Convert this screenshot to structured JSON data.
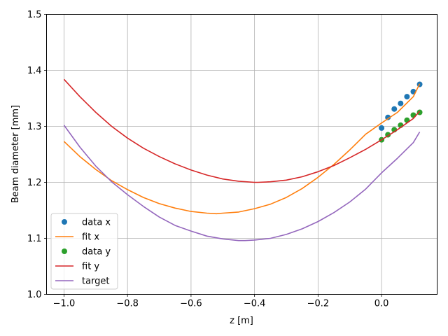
{
  "chart_data": {
    "type": "line",
    "title": "",
    "xlabel": "z [m]",
    "ylabel": "Beam diameter [mm]",
    "xlim": [
      -1.055,
      0.175
    ],
    "ylim": [
      1.0,
      1.5
    ],
    "xticks": [
      -1.0,
      -0.8,
      -0.6,
      -0.4,
      -0.2,
      0.0
    ],
    "xtick_labels": [
      "−1.0",
      "−0.8",
      "−0.6",
      "−0.4",
      "−0.2",
      "0.0"
    ],
    "yticks": [
      1.0,
      1.1,
      1.2,
      1.3,
      1.4,
      1.5
    ],
    "ytick_labels": [
      "1.0",
      "1.1",
      "1.2",
      "1.3",
      "1.4",
      "1.5"
    ],
    "grid": true,
    "legend_position": "lower-left",
    "series": [
      {
        "name": "data x",
        "kind": "points",
        "color": "#1f77b4",
        "x": [
          0.0,
          0.02,
          0.04,
          0.06,
          0.08,
          0.1,
          0.12
        ],
        "y": [
          1.297,
          1.316,
          1.331,
          1.341,
          1.353,
          1.362,
          1.375
        ]
      },
      {
        "name": "fit x",
        "kind": "line",
        "color": "#ff7f0e",
        "x": [
          -1.0,
          -0.95,
          -0.9,
          -0.85,
          -0.8,
          -0.75,
          -0.7,
          -0.65,
          -0.6,
          -0.55,
          -0.52,
          -0.5,
          -0.45,
          -0.4,
          -0.35,
          -0.3,
          -0.25,
          -0.2,
          -0.15,
          -0.1,
          -0.05,
          0.0,
          0.05,
          0.1,
          0.12
        ],
        "y": [
          1.273,
          1.246,
          1.223,
          1.203,
          1.187,
          1.173,
          1.162,
          1.154,
          1.148,
          1.145,
          1.144,
          1.145,
          1.147,
          1.153,
          1.161,
          1.173,
          1.189,
          1.209,
          1.232,
          1.258,
          1.286,
          1.306,
          1.325,
          1.353,
          1.376
        ]
      },
      {
        "name": "data y",
        "kind": "points",
        "color": "#2ca02c",
        "x": [
          0.0,
          0.02,
          0.04,
          0.06,
          0.08,
          0.1,
          0.12
        ],
        "y": [
          1.276,
          1.285,
          1.294,
          1.302,
          1.311,
          1.32,
          1.325
        ]
      },
      {
        "name": "fit y",
        "kind": "line",
        "color": "#d62728",
        "x": [
          -1.0,
          -0.95,
          -0.9,
          -0.85,
          -0.8,
          -0.75,
          -0.7,
          -0.65,
          -0.6,
          -0.55,
          -0.5,
          -0.45,
          -0.4,
          -0.39,
          -0.35,
          -0.3,
          -0.25,
          -0.2,
          -0.15,
          -0.1,
          -0.05,
          0.0,
          0.05,
          0.1,
          0.12
        ],
        "y": [
          1.384,
          1.353,
          1.325,
          1.3,
          1.279,
          1.261,
          1.246,
          1.233,
          1.222,
          1.213,
          1.206,
          1.202,
          1.2,
          1.2,
          1.201,
          1.204,
          1.21,
          1.219,
          1.23,
          1.244,
          1.259,
          1.276,
          1.294,
          1.314,
          1.327
        ]
      },
      {
        "name": "target",
        "kind": "line",
        "color": "#9467bd",
        "x": [
          -1.0,
          -0.95,
          -0.9,
          -0.85,
          -0.8,
          -0.75,
          -0.7,
          -0.65,
          -0.6,
          -0.55,
          -0.5,
          -0.45,
          -0.43,
          -0.4,
          -0.35,
          -0.3,
          -0.25,
          -0.2,
          -0.15,
          -0.1,
          -0.05,
          0.0,
          0.05,
          0.1,
          0.12
        ],
        "y": [
          1.302,
          1.263,
          1.229,
          1.201,
          1.178,
          1.157,
          1.138,
          1.123,
          1.113,
          1.104,
          1.099,
          1.096,
          1.096,
          1.097,
          1.1,
          1.107,
          1.117,
          1.13,
          1.146,
          1.165,
          1.188,
          1.217,
          1.243,
          1.271,
          1.29
        ]
      }
    ]
  }
}
